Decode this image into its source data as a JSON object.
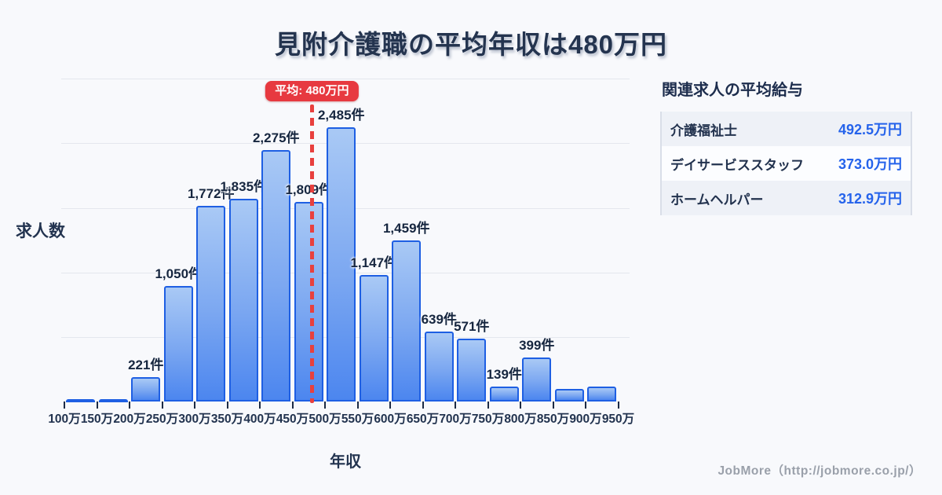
{
  "title": "見附介護職の平均年収は480万円",
  "chart_data": {
    "type": "bar",
    "title": "見附介護職の平均年収は480万円",
    "xlabel": "年収",
    "ylabel": "求人数",
    "ylim": [
      0,
      2925
    ],
    "grid": true,
    "grid_intervals": 5,
    "x_tick_labels": [
      "100万",
      "150万",
      "200万",
      "250万",
      "300万",
      "350万",
      "400万",
      "450万",
      "500万",
      "550万",
      "600万",
      "650万",
      "700万",
      "750万",
      "800万",
      "850万",
      "900万",
      "950万"
    ],
    "bars": [
      {
        "range": "100万-150万",
        "value": 28,
        "label": ""
      },
      {
        "range": "150万-200万",
        "value": 20,
        "label": ""
      },
      {
        "range": "200万-250万",
        "value": 221,
        "label": "221件"
      },
      {
        "range": "250万-300万",
        "value": 1050,
        "label": "1,050件"
      },
      {
        "range": "300万-350万",
        "value": 1772,
        "label": "1,772件"
      },
      {
        "range": "350万-400万",
        "value": 1835,
        "label": "1,835件"
      },
      {
        "range": "400万-450万",
        "value": 2275,
        "label": "2,275件"
      },
      {
        "range": "450万-500万",
        "value": 1809,
        "label": "1,809件"
      },
      {
        "range": "500万-550万",
        "value": 2485,
        "label": "2,485件"
      },
      {
        "range": "550万-600万",
        "value": 1147,
        "label": "1,147件"
      },
      {
        "range": "600万-650万",
        "value": 1459,
        "label": "1,459件"
      },
      {
        "range": "650万-700万",
        "value": 639,
        "label": "639件"
      },
      {
        "range": "700万-750万",
        "value": 571,
        "label": "571件"
      },
      {
        "range": "750万-800万",
        "value": 139,
        "label": "139件"
      },
      {
        "range": "800万-850万",
        "value": 399,
        "label": "399件"
      },
      {
        "range": "850万-900万",
        "value": 120,
        "label": ""
      },
      {
        "range": "900万-950万",
        "value": 140,
        "label": ""
      }
    ],
    "average_line": {
      "x": 480,
      "label": "平均: 480万円",
      "color": "#e73940"
    }
  },
  "side_panel": {
    "title": "関連求人の平均給与",
    "rows": [
      {
        "name": "介護福祉士",
        "value": "492.5万円"
      },
      {
        "name": "デイサービススタッフ",
        "value": "373.0万円"
      },
      {
        "name": "ホームヘルパー",
        "value": "312.9万円"
      }
    ]
  },
  "footer": {
    "credit": "JobMore（http://jobmore.co.jp/）"
  },
  "colors": {
    "background": "#f8f9fc",
    "bar_border": "#1e5fe3",
    "bar_gradient_top": "#a9c9f5",
    "bar_gradient_bottom": "#4c86ef",
    "average_red": "#e73940",
    "heading_navy": "#24344f",
    "value_blue": "#2563eb",
    "gridline": "#e4e7ee",
    "row_alt": "#eef1f7",
    "footer_gray": "#9aa0aa"
  }
}
